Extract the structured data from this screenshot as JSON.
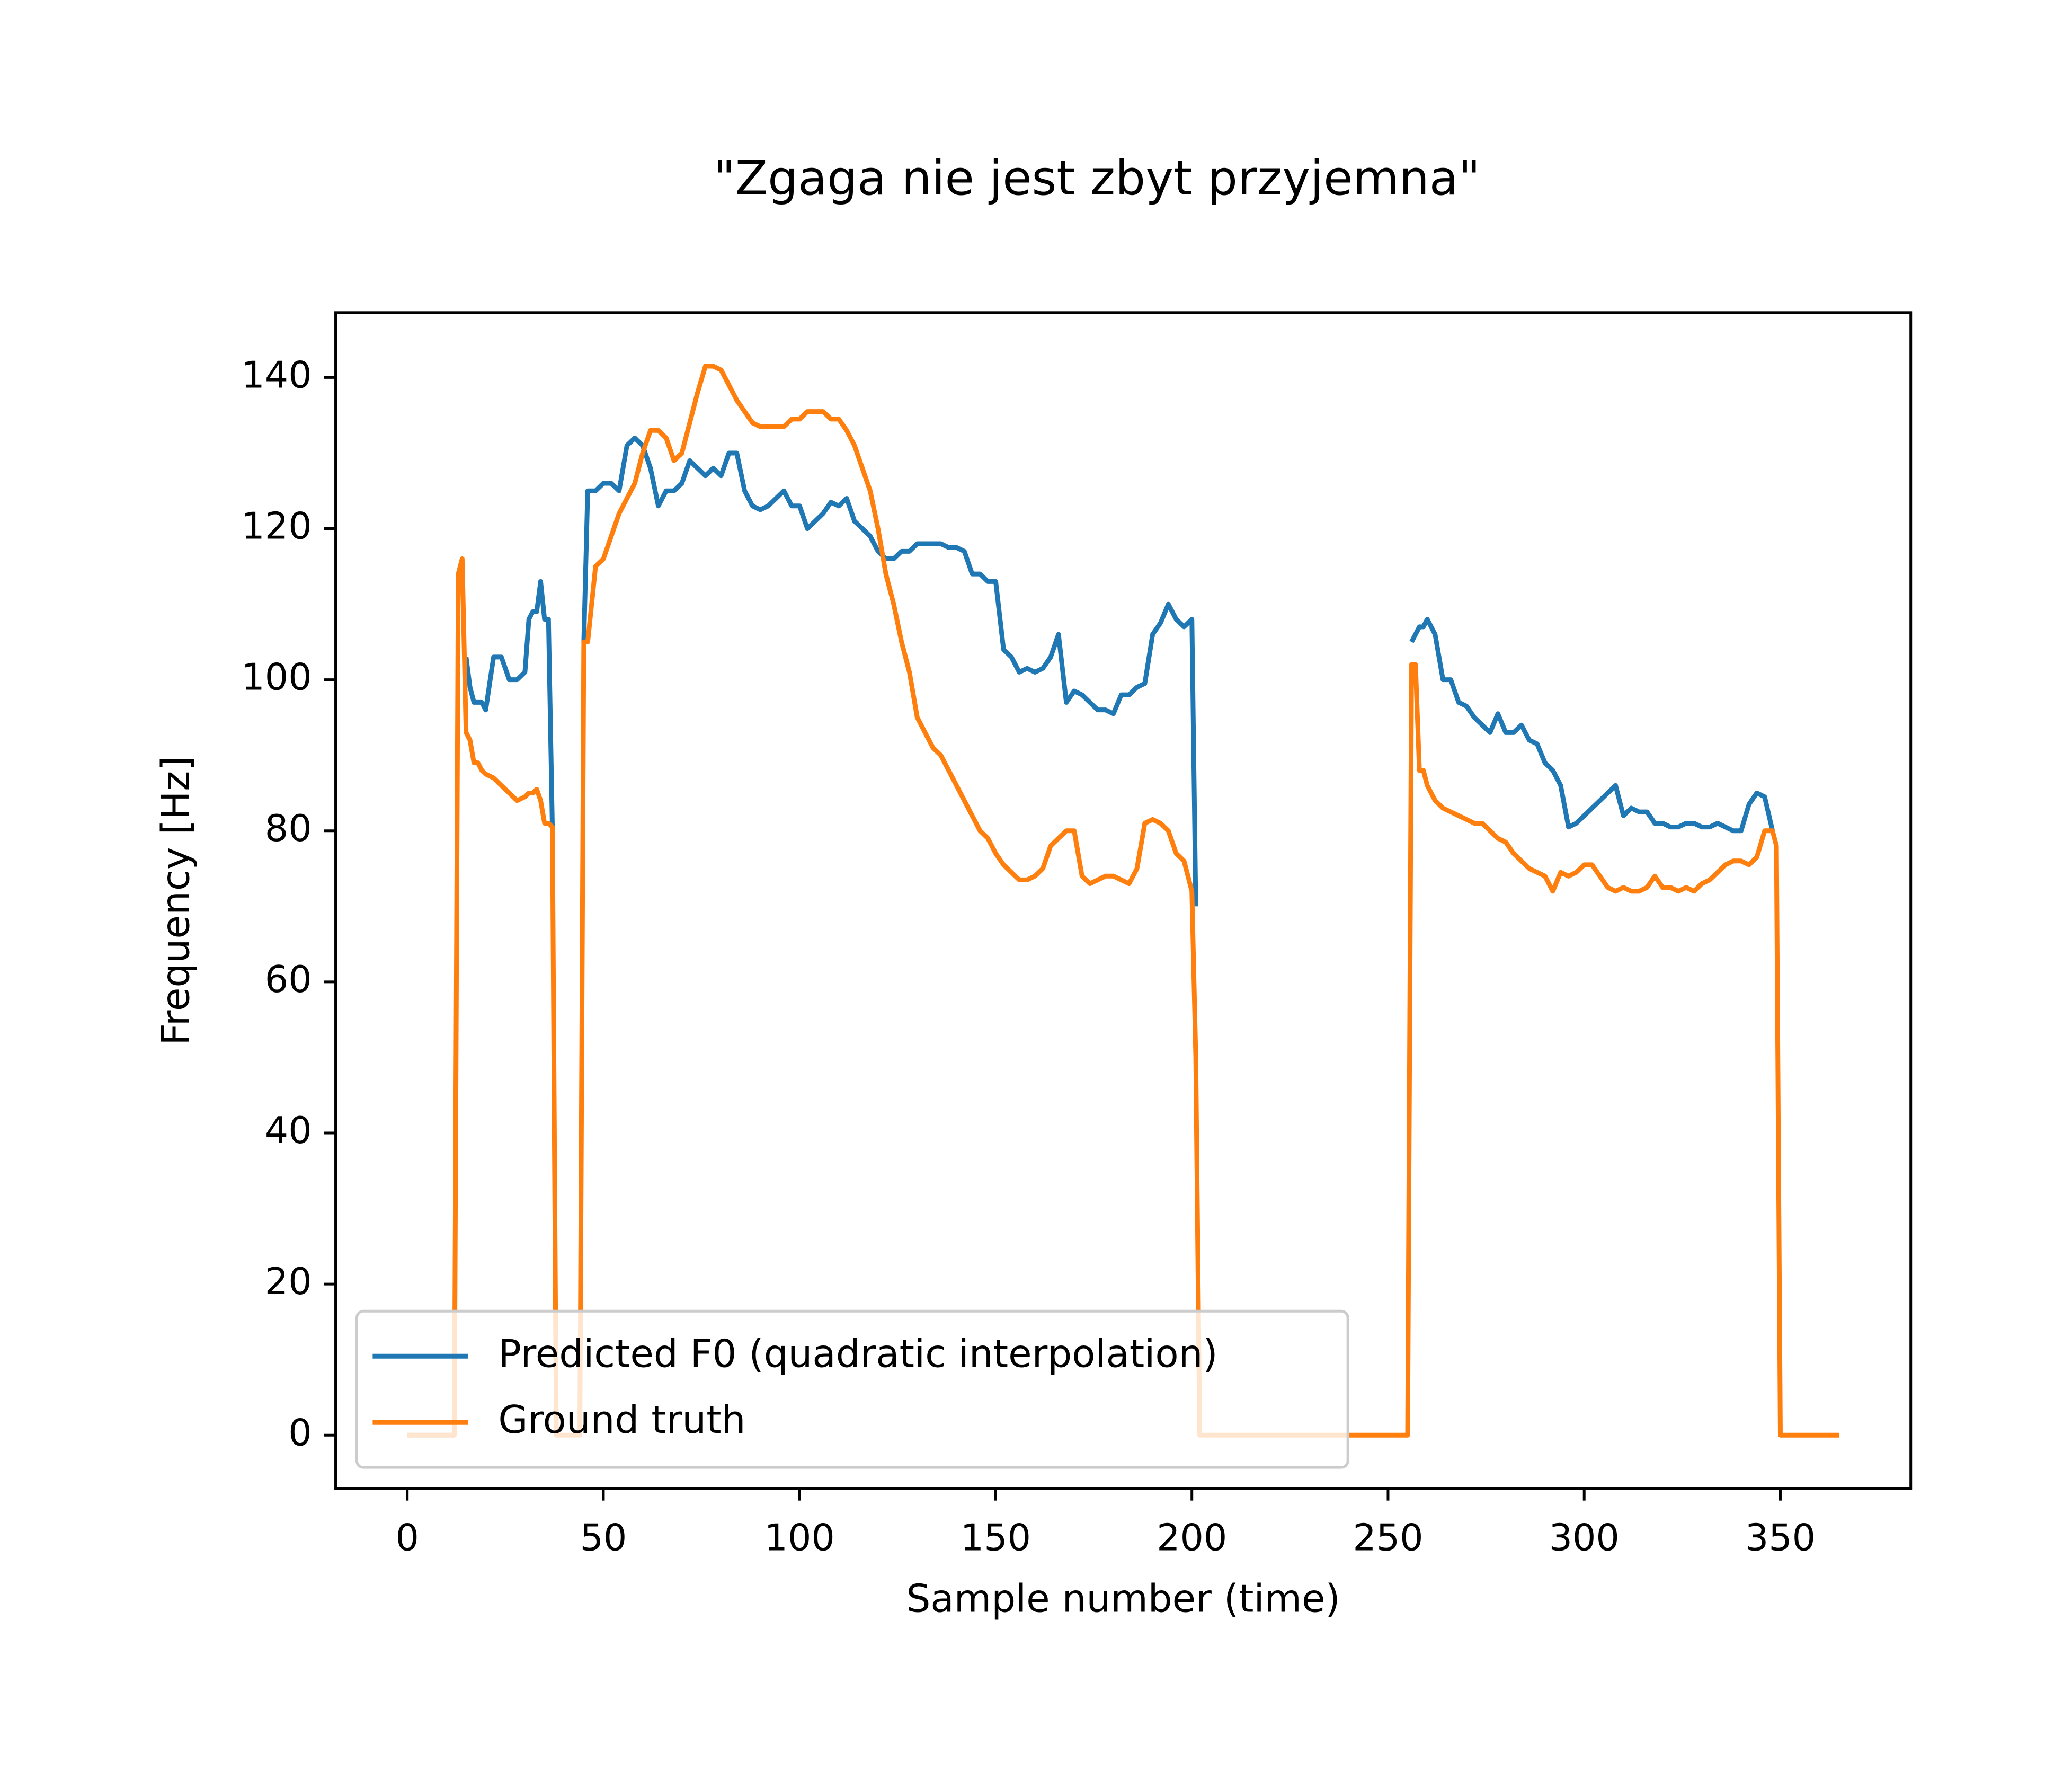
{
  "chart_data": {
    "type": "line",
    "title": "\"Zgaga nie jest zbyt przyjemna\"",
    "x_label": "Sample number (time)",
    "y_label": "Frequency [Hz]",
    "xlim": [
      -18.25,
      383.25
    ],
    "ylim": [
      -7.08,
      148.6
    ],
    "xticks": [
      0,
      50,
      100,
      150,
      200,
      250,
      300,
      350
    ],
    "yticks": [
      0,
      20,
      40,
      60,
      80,
      100,
      120,
      140
    ],
    "legend": "lower left",
    "x": [
      0,
      12,
      13,
      14,
      15,
      16,
      17,
      18,
      19,
      20,
      22,
      24,
      26,
      28,
      30,
      31,
      32,
      33,
      34,
      35,
      36,
      37,
      38,
      44,
      45,
      46,
      48,
      50,
      52,
      54,
      56,
      58,
      60,
      62,
      64,
      66,
      68,
      70,
      72,
      74,
      76,
      78,
      80,
      82,
      84,
      86,
      88,
      90,
      92,
      94,
      96,
      98,
      100,
      102,
      104,
      106,
      108,
      110,
      112,
      114,
      116,
      118,
      120,
      122,
      124,
      126,
      128,
      130,
      132,
      134,
      136,
      138,
      140,
      142,
      144,
      146,
      148,
      150,
      152,
      154,
      156,
      158,
      160,
      162,
      164,
      166,
      168,
      170,
      172,
      174,
      176,
      178,
      180,
      182,
      184,
      186,
      188,
      190,
      192,
      194,
      196,
      198,
      200,
      201,
      202,
      255,
      256,
      257,
      258,
      259,
      260,
      262,
      264,
      266,
      268,
      270,
      272,
      274,
      276,
      278,
      280,
      282,
      284,
      286,
      288,
      290,
      292,
      294,
      296,
      298,
      300,
      302,
      304,
      306,
      308,
      310,
      312,
      314,
      316,
      318,
      320,
      322,
      324,
      326,
      328,
      330,
      332,
      334,
      336,
      338,
      340,
      342,
      344,
      346,
      348,
      349,
      350,
      365
    ],
    "series": [
      {
        "name": "Predicted F0 (quadratic interpolation)",
        "color": "#1f77b4",
        "values": [
          0,
          0,
          null,
          null,
          103,
          99,
          97,
          97,
          97,
          96,
          103,
          103,
          100,
          100,
          101,
          108,
          109,
          109,
          113,
          108,
          108,
          80,
          null,
          null,
          105,
          125,
          125,
          126,
          126,
          125,
          131,
          132,
          131,
          128,
          123,
          125,
          125,
          126,
          129,
          128,
          127,
          128,
          127,
          130,
          130,
          125,
          123,
          122.5,
          123,
          124,
          125,
          123,
          123,
          120,
          121,
          122,
          123.5,
          123,
          124,
          121,
          120,
          119,
          117,
          116,
          116,
          117,
          117,
          118,
          118,
          118,
          118,
          117.5,
          117.5,
          117,
          114,
          114,
          113,
          113,
          104,
          103,
          101,
          101.5,
          101,
          101.5,
          103,
          106,
          97,
          98.5,
          98,
          97,
          96,
          96,
          95.5,
          98,
          98,
          99,
          99.5,
          106,
          107.5,
          110,
          108,
          107,
          108,
          70,
          null,
          null,
          105,
          106,
          107,
          107,
          108,
          106,
          100,
          100,
          97,
          96.5,
          95,
          94,
          93,
          95.5,
          93,
          93,
          94,
          92,
          91.5,
          89,
          88,
          86,
          80.5,
          81,
          82,
          83,
          84,
          85,
          86,
          82,
          83,
          82.5,
          82.5,
          81,
          81,
          80.5,
          80.5,
          81,
          81,
          80.5,
          80.5,
          81,
          80.5,
          80,
          80,
          83.5,
          85,
          84.5,
          80,
          null,
          null,
          null
        ]
      },
      {
        "name": "Ground truth",
        "color": "#ff7f0e",
        "values": [
          0,
          0,
          114,
          116,
          93,
          92,
          89,
          89,
          88,
          87.5,
          87,
          86,
          85,
          84,
          84.5,
          85,
          85,
          85.5,
          84,
          81,
          81,
          80.5,
          0,
          0,
          105,
          105,
          115,
          116,
          119,
          122,
          124,
          126,
          130,
          133,
          133,
          132,
          129,
          130,
          134,
          138,
          141.5,
          141.5,
          141,
          139,
          137,
          135.5,
          134,
          133.5,
          133.5,
          133.5,
          133.5,
          134.5,
          134.5,
          135.5,
          135.5,
          135.5,
          134.5,
          134.5,
          133,
          131,
          128,
          125,
          120,
          114,
          110,
          105,
          101,
          95,
          93,
          91,
          90,
          88,
          86,
          84,
          82,
          80,
          79,
          77,
          75.5,
          74.5,
          73.5,
          73.5,
          74,
          75,
          78,
          79,
          80,
          80,
          74,
          73,
          73.5,
          74,
          74,
          73.5,
          73,
          75,
          81,
          81.5,
          81,
          80,
          77,
          76,
          72,
          50,
          0,
          0,
          102,
          102,
          88,
          88,
          86,
          84,
          83,
          82.5,
          82,
          81.5,
          81,
          81,
          80,
          79,
          78.5,
          77,
          76,
          75,
          74.5,
          74,
          72,
          74.5,
          74,
          74.5,
          75.5,
          75.5,
          74,
          72.5,
          72,
          72.5,
          72,
          72,
          72.5,
          74,
          72.5,
          72.5,
          72,
          72.5,
          72,
          73,
          73.5,
          74.5,
          75.5,
          76,
          76,
          75.5,
          76.5,
          80,
          80,
          78,
          0,
          0
        ]
      }
    ]
  }
}
